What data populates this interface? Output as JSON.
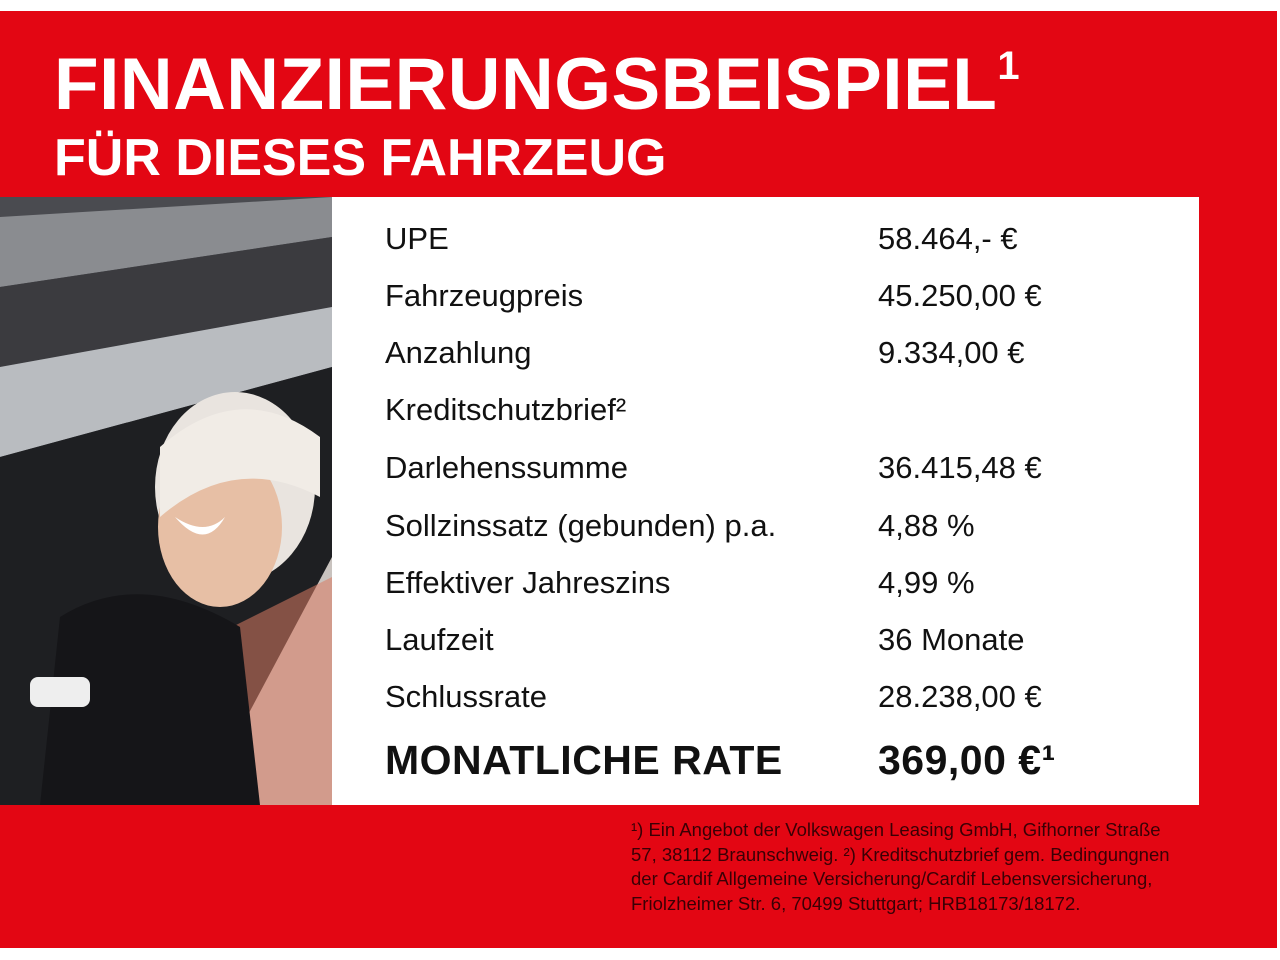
{
  "header": {
    "title": "FINANZIERUNGSBEISPIEL",
    "title_sup": "1",
    "subtitle": "FÜR DIESES FAHRZEUG"
  },
  "colors": {
    "brand_red": "#e30613",
    "panel": "#ffffff",
    "text": "#111111"
  },
  "photo": {
    "description_icon": "woman-in-car-photo"
  },
  "rows": [
    {
      "label": "UPE",
      "value": "58.464,- €"
    },
    {
      "label": "Fahrzeugpreis",
      "value": "45.250,00 €"
    },
    {
      "label": "Anzahlung",
      "value": "9.334,00 €"
    },
    {
      "label": "Kreditschutzbrief²",
      "value": ""
    },
    {
      "label": "Darlehenssumme",
      "value": "36.415,48 €"
    },
    {
      "label": "Sollzinssatz (gebunden) p.a.",
      "value": "4,88 %"
    },
    {
      "label": "Effektiver Jahreszins",
      "value": "4,99 %"
    },
    {
      "label": "Laufzeit",
      "value": "36 Monate"
    },
    {
      "label": "Schlussrate",
      "value": "28.238,00 €"
    }
  ],
  "total": {
    "label": "MONATLICHE RATE",
    "value": "369,00 €¹"
  },
  "footnote": "¹) Ein Angebot der Volkswagen Leasing GmbH, Gifhorner Straße 57, 38112 Braunschweig. ²) Kreditschutzbrief gem. Bedingungnen der Cardif Allgemeine Versicherung/Cardif Lebensversicherung, Friolzheimer Str. 6, 70499 Stuttgart; HRB18173/18172."
}
